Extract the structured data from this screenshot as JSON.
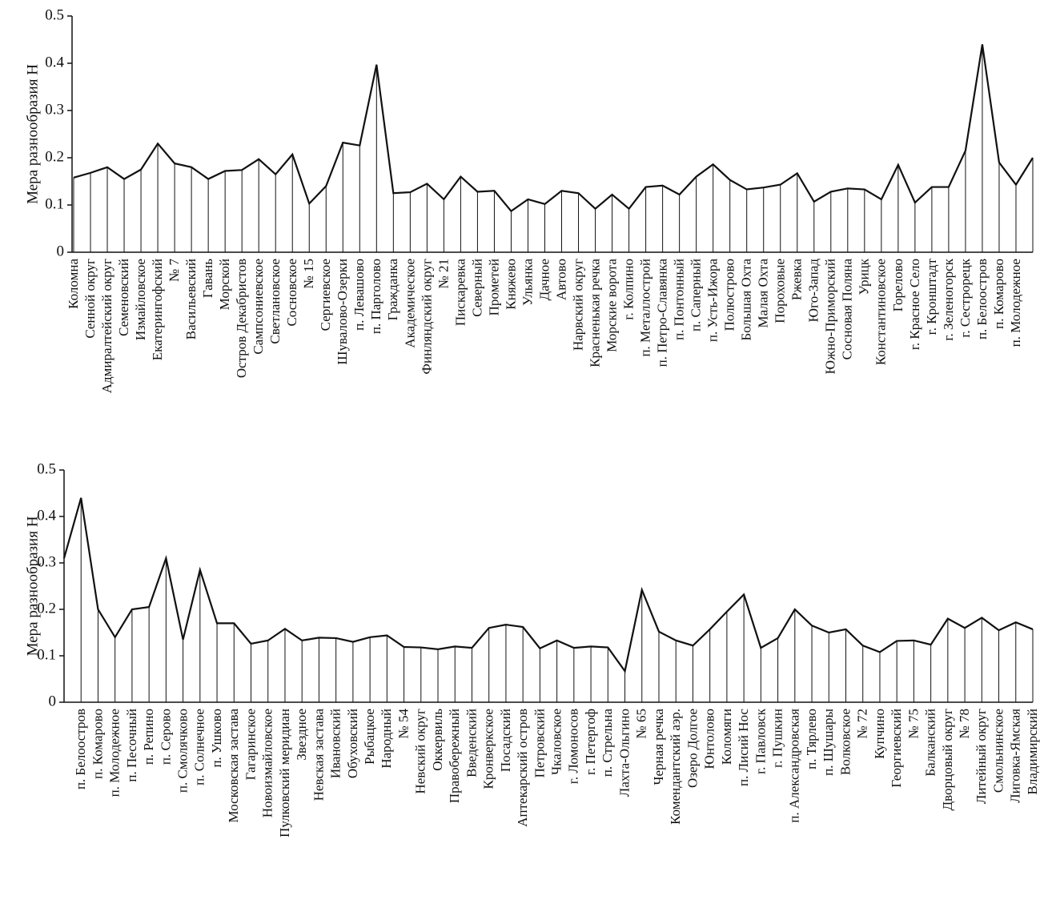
{
  "chart_data": [
    {
      "type": "line",
      "ylabel": "Мера разнообразия H",
      "color": "#111111",
      "drop_lines": true,
      "ylim": [
        0,
        0.5
      ],
      "yticks": [
        0,
        0.1,
        0.2,
        0.3,
        0.4,
        0.5
      ],
      "categories": [
        "Коломна",
        "Сенной округ",
        "Адмиралтейский округ",
        "Семеновский",
        "Измайловское",
        "Екатерингофский",
        "№ 7",
        "Васильевский",
        "Гавань",
        "Морской",
        "Остров Декабристов",
        "Сампсониевское",
        "Светлановское",
        "Сосновское",
        "№ 15",
        "Сергиевское",
        "Шувалово-Озерки",
        "п. Левашово",
        "п. Парголово",
        "Гражданка",
        "Академическое",
        "Финляндский округ",
        "№ 21",
        "Пискаревка",
        "Северный",
        "Прометей",
        "Княжево",
        "Ульянка",
        "Дачное",
        "Автово",
        "Нарвский округ",
        "Красненькая речка",
        "Морские ворота",
        "г. Колпино",
        "п. Металлострой",
        "п. Петро-Славянка",
        "п. Понтонный",
        "п. Саперный",
        "п. Усть-Ижора",
        "Полюстрово",
        "Большая Охта",
        "Малая Охта",
        "Пороховые",
        "Ржевка",
        "Юго-Запад",
        "Южно-Приморский",
        "Сосновая Поляна",
        "Урицк",
        "Константиновское",
        "Горелово",
        "г. Красное Село",
        "г. Кронштадт",
        "г. Зеленогорск",
        "г. Сестрорецк",
        "п. Белоостров",
        "п. Комарово",
        "п. Молодежное",
        null
      ],
      "values": [
        0.158,
        0.168,
        0.18,
        0.155,
        0.175,
        0.23,
        0.188,
        0.18,
        0.155,
        0.172,
        0.174,
        0.197,
        0.165,
        0.207,
        0.103,
        0.14,
        0.232,
        0.226,
        0.397,
        0.125,
        0.127,
        0.145,
        0.112,
        0.16,
        0.128,
        0.13,
        0.087,
        0.112,
        0.102,
        0.13,
        0.125,
        0.092,
        0.122,
        0.092,
        0.138,
        0.141,
        0.122,
        0.16,
        0.186,
        0.153,
        0.133,
        0.137,
        0.143,
        0.167,
        0.107,
        0.128,
        0.135,
        0.133,
        0.112,
        0.185,
        0.105,
        0.138,
        0.138,
        0.215,
        0.44,
        0.19,
        0.143,
        0.2
      ]
    },
    {
      "type": "line",
      "ylabel": "Мера разнообразия H",
      "color": "#111111",
      "drop_lines": true,
      "ylim": [
        0,
        0.5
      ],
      "yticks": [
        0,
        0.1,
        0.2,
        0.3,
        0.4,
        0.5
      ],
      "categories": [
        null,
        "п. Белоостров",
        "п. Комарово",
        "п. Молодежное",
        "п. Песочный",
        "п. Репино",
        "п. Серово",
        "п. Смолячково",
        "п. Солнечное",
        "п. Ушково",
        "Московская застава",
        "Гагаринское",
        "Новоизмайловское",
        "Пулковский меридиан",
        "Звездное",
        "Невская застава",
        "Ивановский",
        "Обуховский",
        "Рыбацкое",
        "Народный",
        "№ 54",
        "Невский округ",
        "Оккервиль",
        "Правобережный",
        "Введенский",
        "Кронверкское",
        "Посадский",
        "Аптекарский остров",
        "Петровский",
        "Чкаловское",
        "г. Ломоносов",
        "г. Петергоф",
        "п. Стрельна",
        "Лахта-Ольгино",
        "№ 65",
        "Черная речка",
        "Комендантский аэр.",
        "Озеро Долгое",
        "Юнтолово",
        "Коломяги",
        "п. Лисий Нос",
        "г. Павловск",
        "г. Пушкин",
        "п. Александровская",
        "п. Тярлево",
        "п. Шушары",
        "Волковское",
        "№ 72",
        "Купчино",
        "Георгиевский",
        "№ 75",
        "Балканский",
        "Дворцовый округ",
        "№ 78",
        "Литейный округ",
        "Смольнинское",
        "Лиговка-Ямская",
        "Владимирский"
      ],
      "values": [
        0.31,
        0.44,
        0.2,
        0.14,
        0.2,
        0.205,
        0.31,
        0.135,
        0.285,
        0.17,
        0.17,
        0.126,
        0.133,
        0.158,
        0.133,
        0.139,
        0.138,
        0.13,
        0.14,
        0.144,
        0.119,
        0.118,
        0.114,
        0.12,
        0.117,
        0.16,
        0.167,
        0.162,
        0.116,
        0.133,
        0.117,
        0.12,
        0.118,
        0.067,
        0.242,
        0.152,
        0.133,
        0.122,
        0.157,
        0.195,
        0.232,
        0.117,
        0.138,
        0.2,
        0.165,
        0.15,
        0.157,
        0.122,
        0.108,
        0.132,
        0.133,
        0.124,
        0.18,
        0.16,
        0.182,
        0.155,
        0.172,
        0.157
      ]
    }
  ]
}
